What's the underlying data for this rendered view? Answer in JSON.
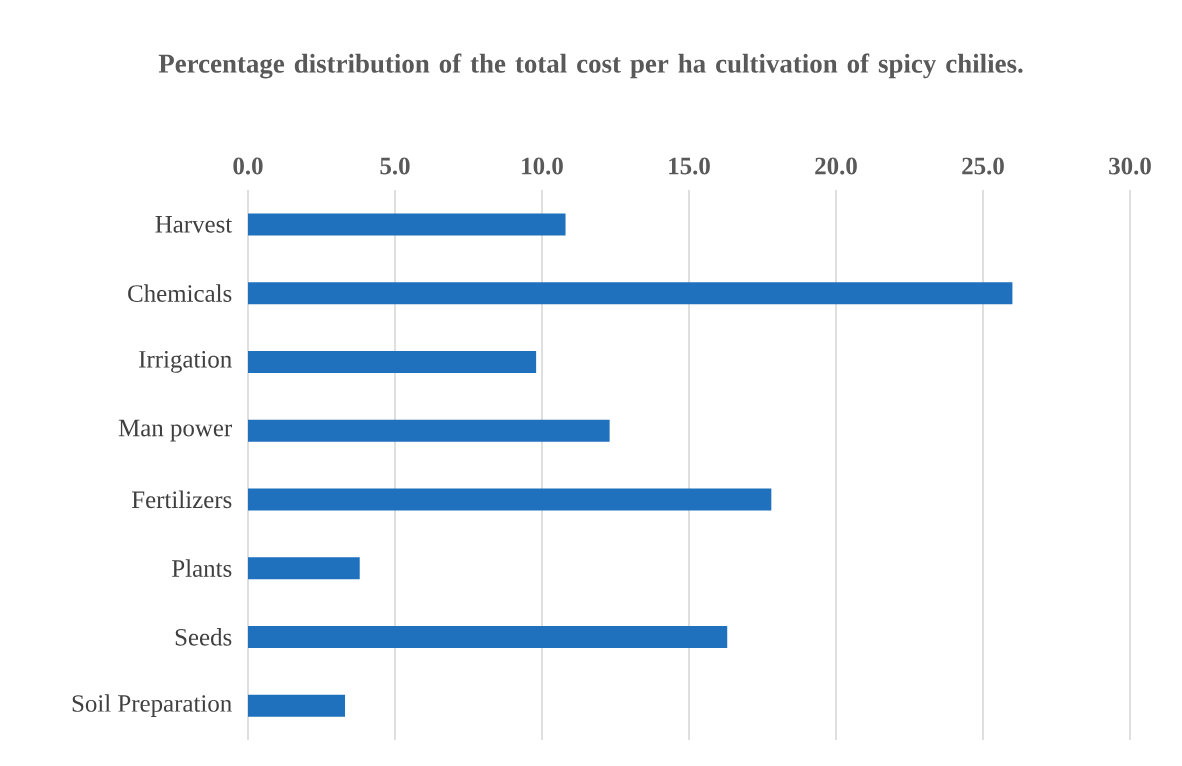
{
  "chart_data": {
    "type": "bar",
    "orientation": "horizontal",
    "title": "Percentage distribution of the total cost per ha cultivation of spicy chilies.",
    "categories": [
      "Harvest",
      "Chemicals",
      "Irrigation",
      "Man power",
      "Fertilizers",
      "Plants",
      "Seeds",
      "Soil Preparation"
    ],
    "values": [
      10.8,
      26.0,
      9.8,
      12.3,
      17.8,
      3.8,
      16.3,
      3.3
    ],
    "color": "#1f70bd",
    "xlim": [
      0,
      30
    ],
    "xticks": [
      {
        "value": 0,
        "label": "0.0"
      },
      {
        "value": 5,
        "label": "5.0"
      },
      {
        "value": 10,
        "label": "10.0"
      },
      {
        "value": 15,
        "label": "15.0"
      },
      {
        "value": 20,
        "label": "20.0"
      },
      {
        "value": 25,
        "label": "25.0"
      },
      {
        "value": 30,
        "label": "30.0"
      }
    ],
    "grid": "x"
  }
}
